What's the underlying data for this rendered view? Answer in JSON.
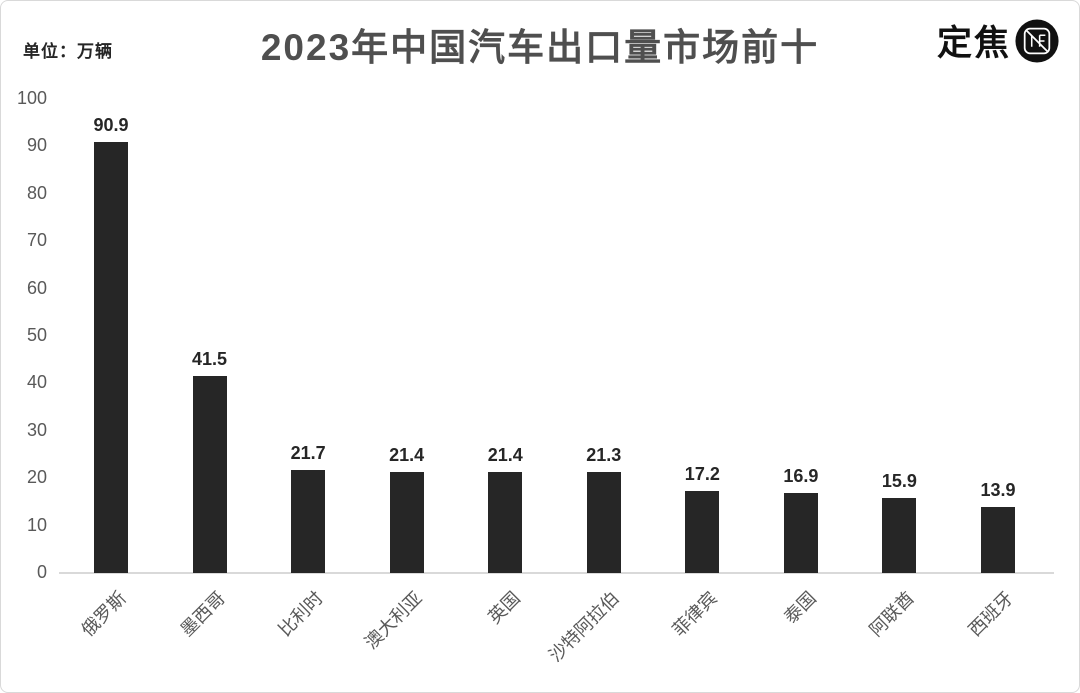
{
  "chart": {
    "title": "2023年中国汽车出口量市场前十",
    "unit_label": "单位：万辆",
    "brand": "定焦"
  },
  "chart_data": {
    "type": "bar",
    "title": "2023年中国汽车出口量市场前十",
    "categories": [
      "俄罗斯",
      "墨西哥",
      "比利时",
      "澳大利亚",
      "英国",
      "沙特阿拉伯",
      "菲律宾",
      "泰国",
      "阿联酋",
      "西班牙"
    ],
    "values": [
      90.9,
      41.5,
      21.7,
      21.4,
      21.4,
      21.3,
      17.2,
      16.9,
      15.9,
      13.9
    ],
    "xlabel": "",
    "ylabel": "单位：万辆",
    "ylim": [
      0,
      100
    ],
    "yticks": [
      0,
      10,
      20,
      30,
      40,
      50,
      60,
      70,
      80,
      90,
      100
    ],
    "grid": false,
    "legend": false,
    "bar_color": "#262626",
    "tick_label_color": "#595959",
    "value_label_color": "#262626",
    "title_color": "#4f4f4f",
    "axis_line_color": "#d9d9d9"
  }
}
